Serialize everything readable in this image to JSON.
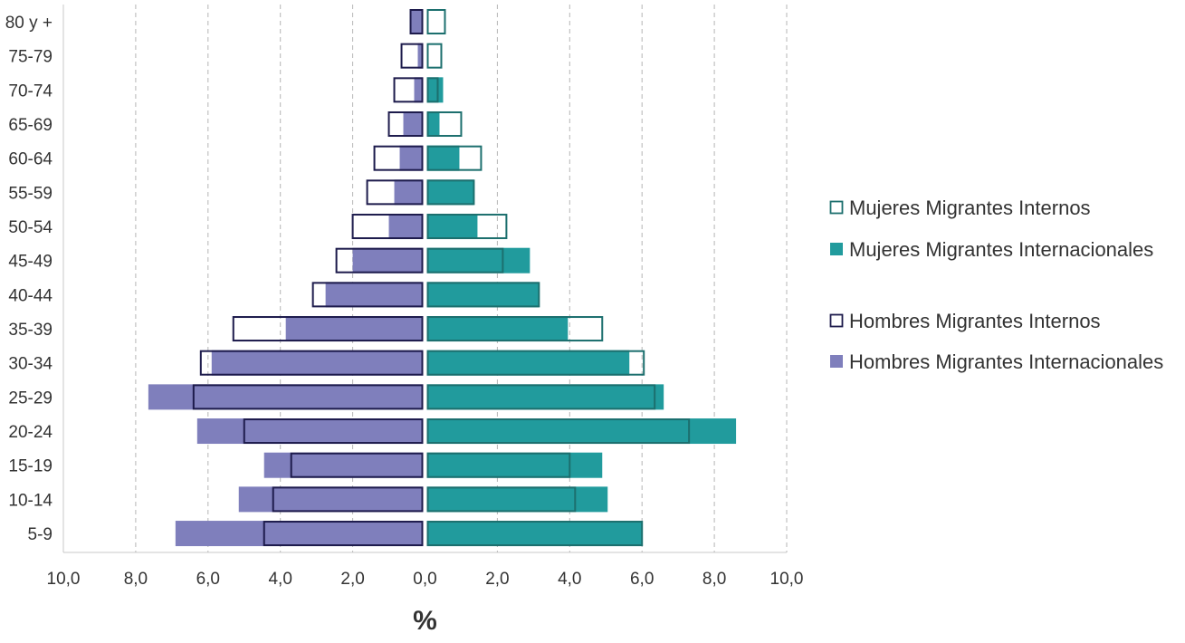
{
  "chart_data": {
    "type": "bar",
    "orientation": "horizontal",
    "subtype": "population-pyramid-overlay",
    "categories": [
      "80 y +",
      "75-79",
      "70-74",
      "65-69",
      "60-64",
      "55-59",
      "50-54",
      "45-49",
      "40-44",
      "35-39",
      "30-34",
      "25-29",
      "20-24",
      "15-19",
      "10-14",
      "5-9"
    ],
    "xlabel": "%",
    "xlim": [
      -10,
      10
    ],
    "x_tick_values": [
      -10,
      -8,
      -6,
      -4,
      -2,
      0,
      2,
      4,
      6,
      8,
      10
    ],
    "x_tick_labels": [
      "10,0",
      "8,0",
      "6,0",
      "4,0",
      "2,0",
      "0,0",
      "2,0",
      "4,0",
      "6,0",
      "8,0",
      "10,0"
    ],
    "grid": "vertical-dashed",
    "legend_position": "right",
    "colors": {
      "mujeres_internacionales": "#219b9d",
      "mujeres_internos_outline": "#1c6f6e",
      "hombres_internacionales": "#7f7fbc",
      "hombres_internos_outline": "#1d1b4c",
      "grid": "#b5b5b5",
      "axis": "#c8c8c8",
      "text": "#333333"
    },
    "series": [
      {
        "name": "Mujeres Migrantes Internos",
        "side": "right",
        "style": "outline",
        "values": [
          0.5,
          0.4,
          0.3,
          0.95,
          1.5,
          1.3,
          2.2,
          2.1,
          3.1,
          4.85,
          6.0,
          6.3,
          7.25,
          3.95,
          4.1,
          5.95
        ]
      },
      {
        "name": "Mujeres Migrantes Internacionales",
        "side": "right",
        "style": "filled",
        "values": [
          0.0,
          0.0,
          0.45,
          0.35,
          0.9,
          1.3,
          1.4,
          2.85,
          3.1,
          3.9,
          5.6,
          6.55,
          8.55,
          4.85,
          5.0,
          5.95
        ]
      },
      {
        "name": "Hombres Migrantes Internos",
        "side": "left",
        "style": "outline",
        "values": [
          0.35,
          0.6,
          0.8,
          0.95,
          1.35,
          1.55,
          1.95,
          2.4,
          3.05,
          5.25,
          6.15,
          6.35,
          4.95,
          3.65,
          4.15,
          4.4
        ]
      },
      {
        "name": "Hombres Migrantes Internacionales",
        "side": "left",
        "style": "filled",
        "values": [
          0.35,
          0.15,
          0.25,
          0.55,
          0.65,
          0.8,
          0.95,
          1.95,
          2.7,
          3.8,
          5.85,
          7.6,
          6.25,
          4.4,
          5.1,
          6.85
        ]
      }
    ]
  }
}
